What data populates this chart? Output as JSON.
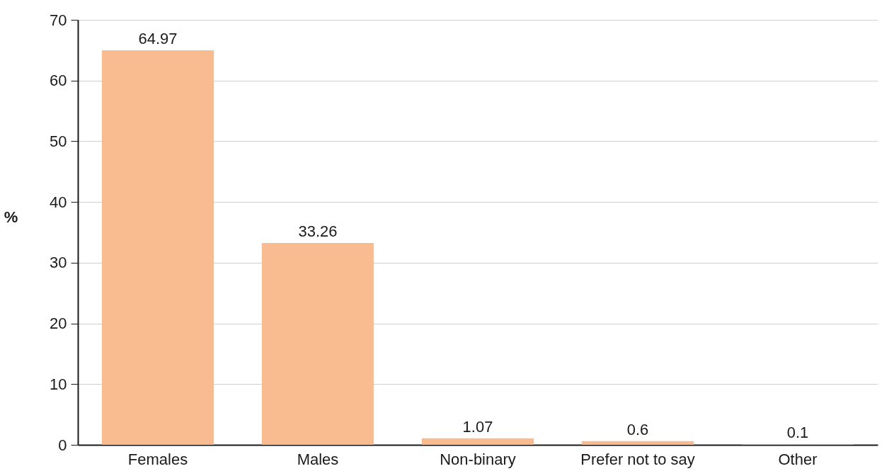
{
  "chart_data": {
    "type": "bar",
    "ylabel": "%",
    "categories": [
      "Females",
      "Males",
      "Non-binary",
      "Prefer not to say",
      "Other"
    ],
    "values": [
      64.97,
      33.26,
      1.07,
      0.6,
      0.1
    ],
    "color": "#f9bc91",
    "ylim": [
      0,
      70
    ],
    "yticks": [
      0,
      10,
      20,
      30,
      40,
      50,
      60,
      70
    ],
    "grid": "y",
    "data_labels": true
  }
}
